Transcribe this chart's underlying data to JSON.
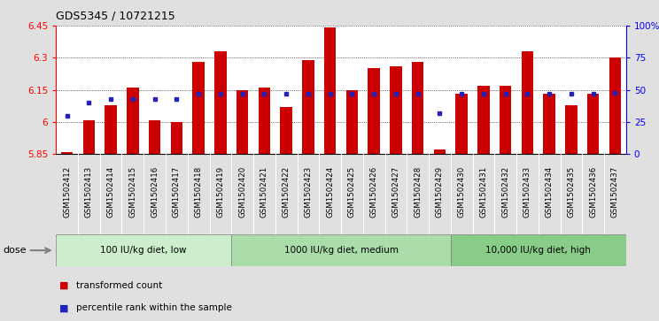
{
  "title": "GDS5345 / 10721215",
  "samples": [
    "GSM1502412",
    "GSM1502413",
    "GSM1502414",
    "GSM1502415",
    "GSM1502416",
    "GSM1502417",
    "GSM1502418",
    "GSM1502419",
    "GSM1502420",
    "GSM1502421",
    "GSM1502422",
    "GSM1502423",
    "GSM1502424",
    "GSM1502425",
    "GSM1502426",
    "GSM1502427",
    "GSM1502428",
    "GSM1502429",
    "GSM1502430",
    "GSM1502431",
    "GSM1502432",
    "GSM1502433",
    "GSM1502434",
    "GSM1502435",
    "GSM1502436",
    "GSM1502437"
  ],
  "red_values": [
    5.86,
    6.01,
    6.08,
    6.16,
    6.01,
    6.0,
    6.28,
    6.33,
    6.15,
    6.16,
    6.07,
    6.29,
    6.44,
    6.15,
    6.25,
    6.26,
    6.28,
    5.87,
    6.13,
    6.17,
    6.17,
    6.33,
    6.13,
    6.08,
    6.13,
    6.3
  ],
  "blue_percentiles": [
    30,
    40,
    43,
    43,
    43,
    43,
    47,
    47,
    47,
    47,
    47,
    47,
    47,
    47,
    47,
    47,
    47,
    32,
    47,
    47,
    47,
    47,
    47,
    47,
    47,
    48
  ],
  "ymin": 5.85,
  "ymax": 6.45,
  "yticks": [
    5.85,
    6.0,
    6.15,
    6.3,
    6.45
  ],
  "ytick_labels": [
    "5.85",
    "6",
    "6.15",
    "6.3",
    "6.45"
  ],
  "right_yticks": [
    0,
    25,
    50,
    75,
    100
  ],
  "right_ytick_labels": [
    "0",
    "25",
    "50",
    "75",
    "100%"
  ],
  "groups": [
    {
      "label": "100 IU/kg diet, low",
      "start": 0,
      "end": 8
    },
    {
      "label": "1000 IU/kg diet, medium",
      "start": 8,
      "end": 18
    },
    {
      "label": "10,000 IU/kg diet, high",
      "start": 18,
      "end": 26
    }
  ],
  "bar_color": "#cc0000",
  "blue_color": "#2222bb",
  "plot_bg": "#ffffff",
  "label_bg": "#d8d8d8",
  "group_color": "#b8e8b8",
  "bar_width": 0.55,
  "legend_items": [
    {
      "label": "transformed count",
      "color": "#cc0000"
    },
    {
      "label": "percentile rank within the sample",
      "color": "#2222bb"
    }
  ]
}
